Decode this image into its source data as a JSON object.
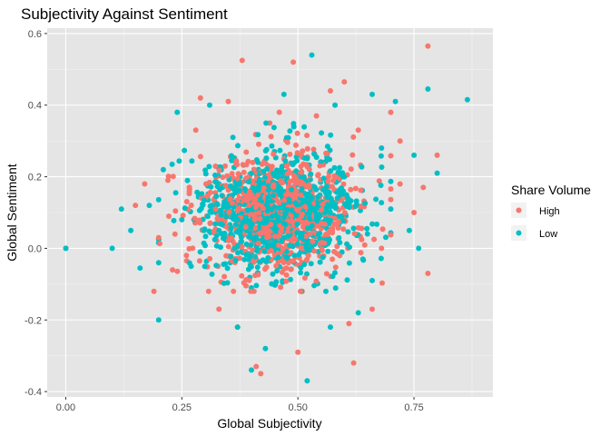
{
  "chart_data": {
    "type": "scatter",
    "title": "Subjectivity Against Sentiment",
    "xlabel": "Global Subjectivity",
    "ylabel": "Global Sentiment",
    "xlim": [
      -0.04,
      0.92
    ],
    "ylim": [
      -0.415,
      0.615
    ],
    "x_ticks": [
      0.0,
      0.25,
      0.5,
      0.75
    ],
    "x_tick_labels": [
      "0.00",
      "0.25",
      "0.50",
      "0.75"
    ],
    "y_ticks": [
      -0.4,
      -0.2,
      0.0,
      0.2,
      0.4,
      0.6
    ],
    "y_tick_labels": [
      "-0.4",
      "-0.2",
      "0.0",
      "0.2",
      "0.4",
      "0.6"
    ],
    "grid": true,
    "background": "#e5e5e5",
    "legend": {
      "title": "Share Volume",
      "placement": "right",
      "entries": [
        "High",
        "Low"
      ]
    },
    "series": [
      {
        "name": "High",
        "color": "#f8766d",
        "points": [
          [
            0.0,
            0.0
          ],
          [
            0.78,
            0.565
          ],
          [
            0.38,
            0.525
          ],
          [
            0.49,
            0.52
          ],
          [
            0.6,
            0.465
          ],
          [
            0.19,
            -0.12
          ],
          [
            0.33,
            -0.17
          ],
          [
            0.37,
            -0.22
          ],
          [
            0.41,
            -0.33
          ],
          [
            0.42,
            -0.35
          ],
          [
            0.5,
            -0.29
          ],
          [
            0.62,
            -0.32
          ],
          [
            0.66,
            -0.17
          ],
          [
            0.61,
            -0.21
          ],
          [
            0.78,
            -0.07
          ],
          [
            0.8,
            0.26
          ],
          [
            0.72,
            0.3
          ],
          [
            0.77,
            0.17
          ],
          [
            0.15,
            0.12
          ],
          [
            0.2,
            0.03
          ],
          [
            0.17,
            0.18
          ],
          [
            0.22,
            0.19
          ],
          [
            0.29,
            0.42
          ],
          [
            0.35,
            0.41
          ],
          [
            0.57,
            0.44
          ],
          [
            0.7,
            0.38
          ],
          [
            0.75,
            0.1
          ],
          [
            0.68,
            0.0
          ],
          [
            0.23,
            -0.06
          ],
          [
            0.28,
            0.33
          ],
          [
            0.54,
            0.37
          ],
          [
            0.46,
            0.38
          ],
          [
            0.63,
            0.33
          ],
          [
            0.26,
            -0.02
          ],
          [
            0.72,
            0.18
          ]
        ]
      },
      {
        "name": "Low",
        "color": "#00bfc4",
        "points": [
          [
            0.0,
            0.0
          ],
          [
            0.865,
            0.415
          ],
          [
            0.53,
            0.54
          ],
          [
            0.78,
            0.445
          ],
          [
            0.8,
            0.21
          ],
          [
            0.1,
            0.0
          ],
          [
            0.12,
            0.11
          ],
          [
            0.16,
            -0.055
          ],
          [
            0.2,
            -0.2
          ],
          [
            0.37,
            -0.22
          ],
          [
            0.43,
            -0.28
          ],
          [
            0.4,
            -0.34
          ],
          [
            0.52,
            -0.37
          ],
          [
            0.57,
            -0.22
          ],
          [
            0.63,
            -0.18
          ],
          [
            0.66,
            -0.09
          ],
          [
            0.76,
            0.0
          ],
          [
            0.74,
            0.05
          ],
          [
            0.47,
            0.43
          ],
          [
            0.71,
            0.41
          ],
          [
            0.75,
            0.26
          ],
          [
            0.14,
            0.05
          ],
          [
            0.18,
            0.12
          ],
          [
            0.24,
            0.38
          ],
          [
            0.31,
            0.4
          ],
          [
            0.66,
            0.43
          ],
          [
            0.7,
            0.11
          ],
          [
            0.58,
            0.4
          ],
          [
            0.27,
            -0.05
          ],
          [
            0.36,
            0.31
          ],
          [
            0.6,
            0.2
          ],
          [
            0.25,
            0.08
          ],
          [
            0.21,
            0.22
          ],
          [
            0.64,
            -0.03
          ],
          [
            0.68,
            0.28
          ]
        ]
      }
    ],
    "dense_cloud": {
      "description_free": true,
      "x_range": [
        0.2,
        0.7
      ],
      "y_range": [
        -0.12,
        0.35
      ],
      "x_center": 0.46,
      "y_center": 0.1
    }
  }
}
